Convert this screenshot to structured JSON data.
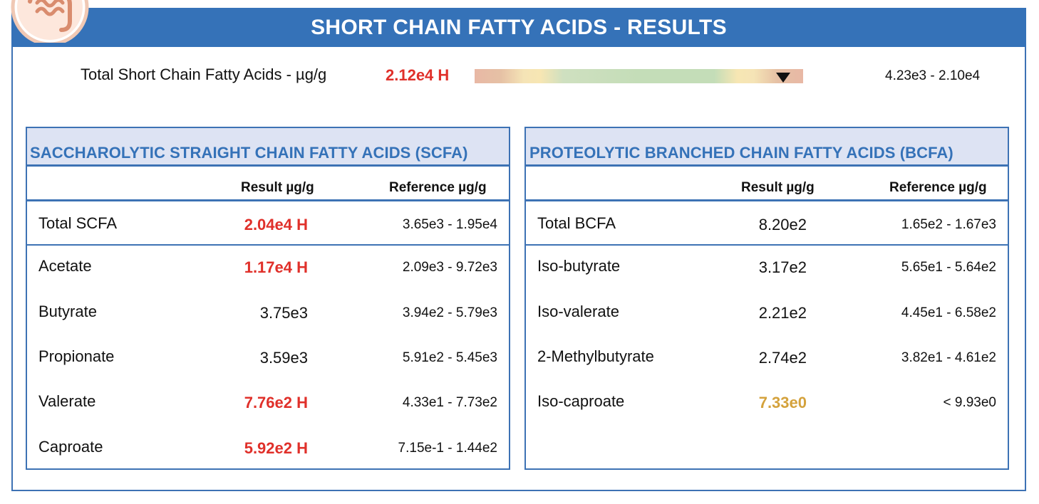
{
  "header": {
    "title": "SHORT CHAIN FATTY ACIDS - RESULTS"
  },
  "total": {
    "label": "Total Short Chain Fatty Acids - µg/g",
    "result": "2.12e4 H",
    "reference": "4.23e3 - 2.10e4",
    "marker_position_fraction": 0.94
  },
  "colors": {
    "accent": "#3572b8",
    "high": "#e0302a",
    "borderline": "#d4a23c",
    "panel_head_bg": "#dde3f3"
  },
  "scfa": {
    "title": "SACCHAROLYTIC STRAIGHT CHAIN FATTY ACIDS (SCFA)",
    "col_result": "Result µg/g",
    "col_reference": "Reference µg/g",
    "total": {
      "name": "Total SCFA",
      "result": "2.04e4 H",
      "reference": "3.65e3 - 1.95e4",
      "flag": "high"
    },
    "rows": [
      {
        "name": "Acetate",
        "result": "1.17e4 H",
        "reference": "2.09e3 - 9.72e3",
        "flag": "high"
      },
      {
        "name": "Butyrate",
        "result": "3.75e3",
        "reference": "3.94e2 - 5.79e3",
        "flag": "normal"
      },
      {
        "name": "Propionate",
        "result": "3.59e3",
        "reference": "5.91e2 - 5.45e3",
        "flag": "normal"
      },
      {
        "name": "Valerate",
        "result": "7.76e2 H",
        "reference": "4.33e1 - 7.73e2",
        "flag": "high"
      },
      {
        "name": "Caproate",
        "result": "5.92e2 H",
        "reference": "7.15e-1 - 1.44e2",
        "flag": "high"
      }
    ]
  },
  "bcfa": {
    "title": "PROTEOLYTIC BRANCHED CHAIN FATTY ACIDS (BCFA)",
    "col_result": "Result µg/g",
    "col_reference": "Reference µg/g",
    "total": {
      "name": "Total BCFA",
      "result": "8.20e2",
      "reference": "1.65e2 - 1.67e3",
      "flag": "normal"
    },
    "rows": [
      {
        "name": "Iso-butyrate",
        "result": "3.17e2",
        "reference": "5.65e1 - 5.64e2",
        "flag": "normal"
      },
      {
        "name": "Iso-valerate",
        "result": "2.21e2",
        "reference": "4.45e1 - 6.58e2",
        "flag": "normal"
      },
      {
        "name": "2-Methylbutyrate",
        "result": "2.74e2",
        "reference": "3.82e1 - 4.61e2",
        "flag": "normal"
      },
      {
        "name": "Iso-caproate",
        "result": "7.33e0",
        "reference": "< 9.93e0",
        "flag": "borderline"
      }
    ]
  }
}
